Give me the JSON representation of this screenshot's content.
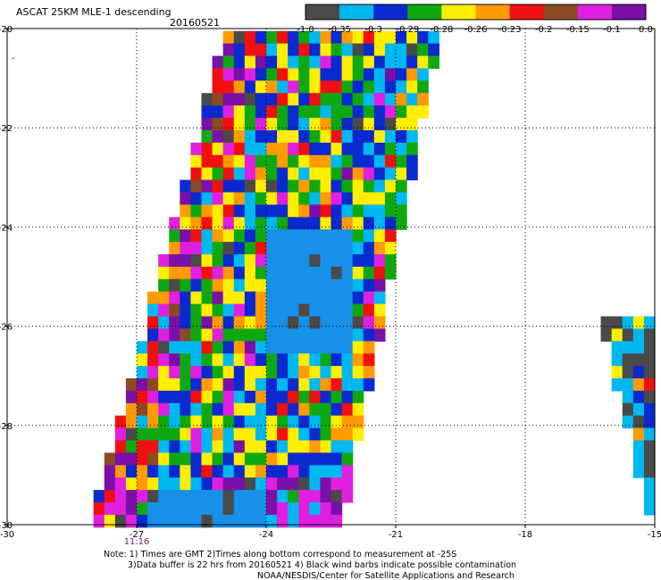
{
  "chart_data": {
    "type": "heatmap",
    "title": "ASCAT 25KM MLE-1 descending",
    "date": "20160521",
    "x_axis": {
      "range": [
        -30,
        -15
      ],
      "ticks": [
        -30,
        -27,
        -24,
        -21,
        -18,
        -15
      ],
      "tick_labels": [
        "-30",
        "-27",
        "-24",
        "-21",
        "-18",
        "-15"
      ]
    },
    "y_axis": {
      "range": [
        -30,
        -20
      ],
      "ticks": [
        -20,
        -22,
        -24,
        -26,
        -28,
        -30
      ],
      "tick_labels": [
        "-20",
        "-22",
        "-24",
        "-26",
        "-28",
        "-30"
      ]
    },
    "grid": "dotted",
    "time_labels": [
      {
        "x": -27,
        "label": "11:16",
        "color": "#6e1a6e"
      }
    ],
    "colorbar": {
      "tick_labels": [
        "-1.0",
        "-0.35",
        "-0.3",
        "-0.29",
        "-0.28",
        "-0.26",
        "-0.23",
        "-0.2",
        "-0.15",
        "-0.1",
        "0.0"
      ],
      "bins": [
        {
          "from": -1.0,
          "to": -0.35,
          "color": "#4a4a4a"
        },
        {
          "from": -0.35,
          "to": -0.3,
          "color": "#00b8f0"
        },
        {
          "from": -0.3,
          "to": -0.29,
          "color": "#0a2ad0"
        },
        {
          "from": -0.29,
          "to": -0.28,
          "color": "#10a810"
        },
        {
          "from": -0.28,
          "to": -0.26,
          "color": "#ffee00"
        },
        {
          "from": -0.26,
          "to": -0.23,
          "color": "#ff9a00"
        },
        {
          "from": -0.23,
          "to": -0.2,
          "color": "#f01010"
        },
        {
          "from": -0.2,
          "to": -0.15,
          "color": "#8c4a22"
        },
        {
          "from": -0.15,
          "to": -0.1,
          "color": "#e020e0"
        },
        {
          "from": -0.1,
          "to": 0.0,
          "color": "#7a10a8"
        }
      ]
    },
    "swaths": [
      {
        "name": "main",
        "lat_range": [
          -30,
          -20.05
        ],
        "west_lon": [
          -28.1,
          -25.0
        ],
        "east_lon": [
          -22.4,
          -20.1
        ],
        "lower_band_lat": -28.8
      },
      {
        "name": "east",
        "lat_range": [
          -30,
          -25.8
        ],
        "west_lon": [
          -15.05,
          -16.25
        ],
        "east_lon": [
          -15.0,
          -15.0
        ]
      }
    ],
    "uniform_region": {
      "lat_range": [
        -26.3,
        -24.05
      ],
      "lon_range": [
        -24.1,
        -22.0
      ],
      "color": "#1690e8"
    },
    "bottom_band": {
      "lat_range": [
        -30,
        -29.2
      ],
      "lon_range": [
        -26.8,
        -24.0
      ],
      "color": "#1690e8"
    }
  },
  "notes": [
    "Note: 1) Times are GMT 2)Times along bottom correspond to measurement at -25S",
    "3)Data buffer is 22 hrs from 20160521 4) Black wind barbs indicate possible contamination",
    "NOAA/NESDIS/Center for Satellite Applications and Research"
  ]
}
